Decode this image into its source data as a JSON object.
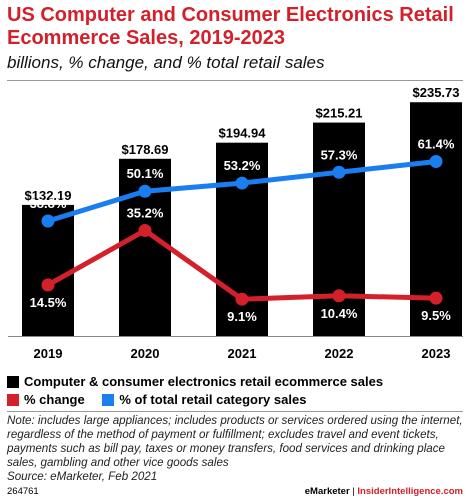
{
  "title": "US Computer and Consumer Electronics Retail Ecommerce Sales, 2019-2023",
  "subtitle": "billions, % change, and % total retail sales",
  "chart_data": {
    "type": "bar",
    "categories": [
      "2019",
      "2020",
      "2021",
      "2022",
      "2023"
    ],
    "ylim": [
      0,
      240
    ],
    "series": [
      {
        "name": "Computer & consumer electronics retail ecommerce sales",
        "type": "bar",
        "values": [
          132.19,
          178.69,
          194.94,
          215.21,
          235.73
        ],
        "labels": [
          "$132.19",
          "$178.69",
          "$194.94",
          "$215.21",
          "$235.73"
        ],
        "color": "#000000"
      },
      {
        "name": "% change",
        "type": "line",
        "values": [
          14.5,
          35.2,
          9.1,
          10.4,
          9.5
        ],
        "labels": [
          "14.5%",
          "35.2%",
          "9.1%",
          "10.4%",
          "9.5%"
        ],
        "color": "#d3202a"
      },
      {
        "name": "% of total retail category sales",
        "type": "line",
        "values": [
          38.8,
          50.1,
          53.2,
          57.3,
          61.4
        ],
        "labels": [
          "38.8%",
          "50.1%",
          "53.2%",
          "57.3%",
          "61.4%"
        ],
        "color": "#1a7ef0"
      }
    ]
  },
  "legend": {
    "bars_label": "Computer & consumer electronics retail ecommerce sales",
    "change_label": "% change",
    "share_label": "% of total retail category sales"
  },
  "note": "Note: includes large appliances; includes products or services ordered using the internet, regardless of the method of payment or fulfillment; excludes travel and event tickets, payments such as bill pay, taxes or money transfers, food services and drinking place sales, gambling and other vice goods sales",
  "source": "Source: eMarketer, Feb 2021",
  "footer": {
    "chart_id": "264761",
    "brand_emarketer": "eMarketer",
    "brand_divider": "|",
    "brand_insider": "InsiderIntelligence.com"
  }
}
